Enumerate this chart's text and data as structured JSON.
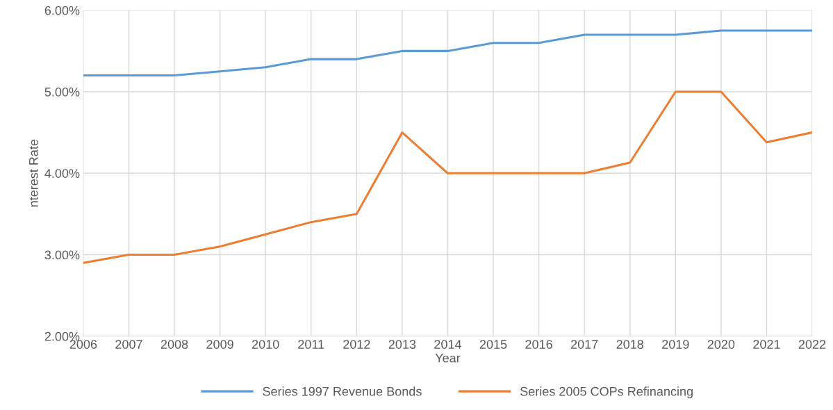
{
  "chart_data": {
    "type": "line",
    "xlabel": "Year",
    "ylabel": "nterest Rate",
    "x": [
      2006,
      2007,
      2008,
      2009,
      2010,
      2011,
      2012,
      2013,
      2014,
      2015,
      2016,
      2017,
      2018,
      2019,
      2020,
      2021,
      2022
    ],
    "series": [
      {
        "name": "Series 1997 Revenue Bonds",
        "color": "#5b9bd5",
        "values": [
          5.2,
          5.2,
          5.2,
          5.25,
          5.3,
          5.4,
          5.4,
          5.5,
          5.5,
          5.6,
          5.6,
          5.7,
          5.7,
          5.7,
          5.75,
          5.75,
          5.75
        ]
      },
      {
        "name": "Series 2005 COPs Refinancing",
        "color": "#ed7d31",
        "values": [
          2.9,
          3.0,
          3.0,
          3.1,
          3.25,
          3.4,
          3.5,
          4.5,
          4.0,
          4.0,
          4.0,
          4.0,
          4.13,
          5.0,
          5.0,
          4.38,
          4.5
        ]
      }
    ],
    "xlim": [
      2006,
      2022
    ],
    "xticks": [
      2006,
      2007,
      2008,
      2009,
      2010,
      2011,
      2012,
      2013,
      2014,
      2015,
      2016,
      2017,
      2018,
      2019,
      2020,
      2021,
      2022
    ],
    "ylim": [
      2,
      6
    ],
    "yticks": [
      {
        "value": 2,
        "label": "2.00%"
      },
      {
        "value": 3,
        "label": "3.00%"
      },
      {
        "value": 4,
        "label": "4.00%"
      },
      {
        "value": 5,
        "label": "5.00%"
      },
      {
        "value": 6,
        "label": "6.00%"
      }
    ],
    "grid": true,
    "legend": "bottom"
  }
}
